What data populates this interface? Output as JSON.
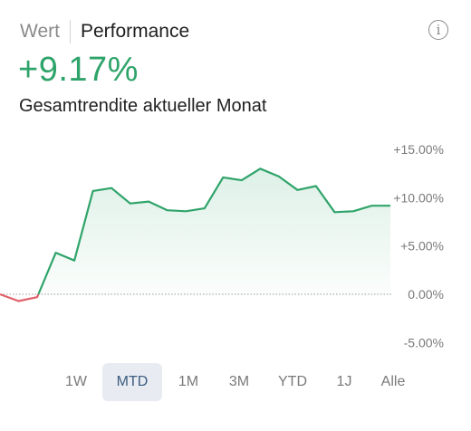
{
  "header": {
    "tab_value": "Wert",
    "tab_performance": "Performance",
    "info_label": "i"
  },
  "summary": {
    "return_value": "+9.17%",
    "return_label": "Gesamtrendite aktueller Monat"
  },
  "colors": {
    "positive": "#2fa46a",
    "negative": "#e0606a",
    "active_range_bg": "#e8ecf2"
  },
  "range_selector": {
    "options": [
      "1W",
      "MTD",
      "1M",
      "3M",
      "YTD",
      "1J",
      "Alle"
    ],
    "selected": "MTD"
  },
  "chart_data": {
    "type": "line",
    "y_tick_labels": [
      "+15.00%",
      "+10.00%",
      "+5.00%",
      "0.00%",
      "-5.00%"
    ],
    "y_ticks": [
      15,
      10,
      5,
      0,
      -5
    ],
    "ylim": [
      -6,
      16
    ],
    "baseline": 0,
    "values": [
      0.0,
      -0.7,
      -0.3,
      4.3,
      3.5,
      10.7,
      11.0,
      9.4,
      9.6,
      8.7,
      8.6,
      8.9,
      12.1,
      11.8,
      13.0,
      12.2,
      10.8,
      11.2,
      8.5,
      8.6,
      9.17,
      9.17
    ]
  }
}
